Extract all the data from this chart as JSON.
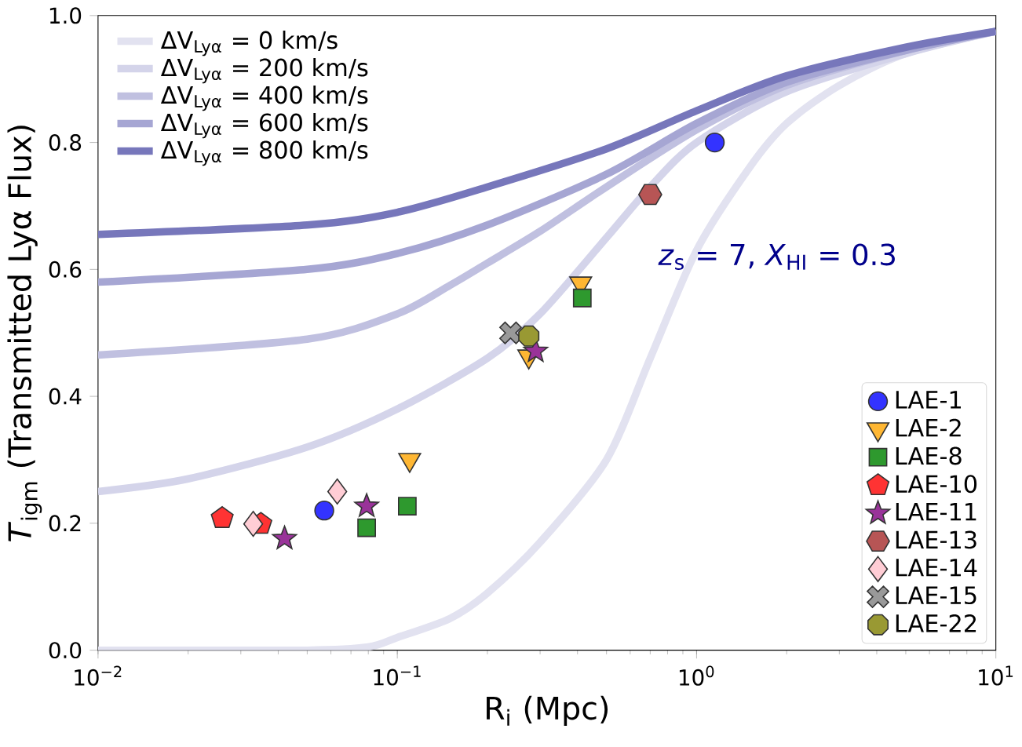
{
  "chart_data": {
    "type": "line",
    "xlabel": "R$_{i}$ (Mpc)",
    "ylabel": "*T*$_{igm}$ (Transmitted Lyα Flux)",
    "log": "x",
    "xlim": [
      0.01,
      10
    ],
    "ylim": [
      0,
      1
    ],
    "xticks": [
      {
        "value": 0.01,
        "label": "10$^{−2}$"
      },
      {
        "value": 0.1,
        "label": "10$^{−1}$"
      },
      {
        "value": 1,
        "label": "10$^{0}$"
      },
      {
        "value": 10,
        "label": "10$^{1}$"
      }
    ],
    "yticks": [
      {
        "value": 0,
        "label": "0.0"
      },
      {
        "value": 0.2,
        "label": "0.2"
      },
      {
        "value": 0.4,
        "label": "0.4"
      },
      {
        "value": 0.6,
        "label": "0.6"
      },
      {
        "value": 0.8,
        "label": "0.8"
      },
      {
        "value": 1,
        "label": "1.0"
      }
    ],
    "legend": "top left",
    "annotations": [
      "*z*$_{s}$ = 7, *X*$_{HI}$ = 0.3"
    ],
    "series": [
      {
        "name": "ΔV$_{Lyα}$ = 0 km/s",
        "color": "#e2e2f0",
        "x": [
          0.01,
          0.05,
          0.08,
          0.1,
          0.15,
          0.2,
          0.3,
          0.5,
          0.7,
          1,
          1.5,
          2,
          3,
          5,
          10
        ],
        "values": [
          0,
          0,
          0.005,
          0.02,
          0.05,
          0.09,
          0.17,
          0.3,
          0.46,
          0.63,
          0.76,
          0.83,
          0.89,
          0.94,
          0.975
        ]
      },
      {
        "name": "ΔV$_{Lyα}$ = 200 km/s",
        "color": "#d4d4ea",
        "x": [
          0.01,
          0.02,
          0.05,
          0.1,
          0.2,
          0.3,
          0.5,
          0.7,
          1,
          2,
          5,
          10
        ],
        "values": [
          0.25,
          0.27,
          0.32,
          0.38,
          0.46,
          0.53,
          0.65,
          0.73,
          0.8,
          0.88,
          0.94,
          0.975
        ]
      },
      {
        "name": "ΔV$_{Lyα}$ = 400 km/s",
        "color": "#c0c0e0",
        "x": [
          0.01,
          0.05,
          0.1,
          0.15,
          0.2,
          0.3,
          0.5,
          1,
          2,
          5,
          10
        ],
        "values": [
          0.465,
          0.49,
          0.53,
          0.575,
          0.61,
          0.66,
          0.73,
          0.82,
          0.89,
          0.945,
          0.975
        ]
      },
      {
        "name": "ΔV$_{Lyα}$ = 600 km/s",
        "color": "#a6a6d3",
        "x": [
          0.01,
          0.05,
          0.1,
          0.2,
          0.5,
          1,
          2,
          5,
          10
        ],
        "values": [
          0.58,
          0.6,
          0.625,
          0.67,
          0.75,
          0.83,
          0.895,
          0.945,
          0.975
        ]
      },
      {
        "name": "ΔV$_{Lyα}$ = 800 km/s",
        "color": "#7777bb",
        "x": [
          0.01,
          0.05,
          0.1,
          0.2,
          0.5,
          1,
          2,
          5,
          10
        ],
        "values": [
          0.655,
          0.67,
          0.69,
          0.73,
          0.79,
          0.85,
          0.905,
          0.95,
          0.975
        ]
      },
      {
        "name": "LAE-1",
        "type": "scatter",
        "marker": "circle",
        "color": "#3333ff",
        "x": [
          0.057,
          1.15
        ],
        "values": [
          0.22,
          0.8
        ]
      },
      {
        "name": "LAE-2",
        "type": "scatter",
        "marker": "triangle",
        "color": "#ffb733",
        "x": [
          0.11,
          0.41,
          0.275
        ],
        "values": [
          0.3,
          0.578,
          0.463
        ]
      },
      {
        "name": "LAE-8",
        "type": "scatter",
        "marker": "square",
        "color": "#2e992e",
        "x": [
          0.079,
          0.108,
          0.415
        ],
        "values": [
          0.193,
          0.227,
          0.555
        ]
      },
      {
        "name": "LAE-10",
        "type": "scatter",
        "color": "#ff3333",
        "x": [
          0.026,
          0.035
        ],
        "values": [
          0.208,
          0.199
        ]
      },
      {
        "name": "LAE-11",
        "type": "scatter",
        "marker": "star",
        "color": "#993399",
        "x": [
          0.042,
          0.079,
          0.29
        ],
        "values": [
          0.176,
          0.227,
          0.471
        ]
      },
      {
        "name": "LAE-13",
        "type": "scatter",
        "color": "#b75555",
        "x": [
          0.7
        ],
        "values": [
          0.718
        ]
      },
      {
        "name": "LAE-14",
        "type": "scatter",
        "marker": "diamond",
        "color": "#ffcdd5",
        "x": [
          0.033,
          0.063
        ],
        "values": [
          0.199,
          0.25
        ]
      },
      {
        "name": "LAE-15",
        "type": "scatter",
        "marker": "cross",
        "color": "#999999",
        "x": [
          0.239
        ],
        "values": [
          0.5
        ]
      },
      {
        "name": "LAE-22",
        "type": "scatter",
        "color": "#999933",
        "x": [
          0.275
        ],
        "values": [
          0.495
        ]
      }
    ]
  }
}
